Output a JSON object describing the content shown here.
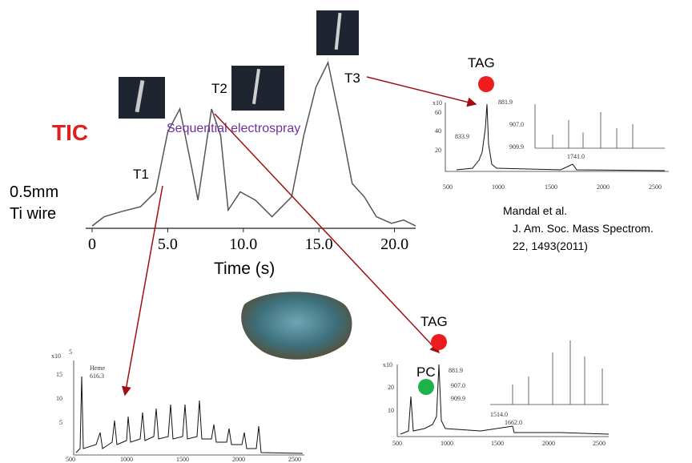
{
  "chart_data": {
    "type": "line",
    "title": "TIC",
    "xlabel": "Time (s)",
    "x": [
      0,
      0.8,
      1.9,
      3.2,
      4.2,
      5.0,
      5.8,
      6.6,
      7.0,
      7.9,
      8.5,
      9.0,
      9.8,
      10.8,
      11.9,
      13.2,
      14.0,
      14.8,
      15.6,
      16.4,
      17.2,
      18.0,
      18.8,
      19.8,
      20.6,
      21.4
    ],
    "values": [
      1.4,
      7,
      10,
      13,
      22,
      58,
      72,
      36,
      17,
      72,
      56,
      11,
      22,
      17,
      7,
      19,
      56,
      85,
      100,
      65,
      27,
      19,
      7,
      3,
      5,
      1.4
    ],
    "color": "#555555",
    "xlim": [
      0,
      21.4
    ],
    "xticks": [
      0,
      {
        "value": 5,
        "label": "5.0"
      },
      {
        "value": 10,
        "label": "10.0"
      },
      {
        "value": 15,
        "label": "15.0"
      },
      {
        "value": 20,
        "label": "20.0"
      }
    ],
    "ylim": [
      0,
      100
    ],
    "points": [
      "T1",
      "T2",
      "T3"
    ]
  },
  "labels": {
    "wire": "0.5mm",
    "wire2": "Ti  wire",
    "sequential": "Sequential electrospray",
    "citation": [
      "Mandal et al.",
      "J. Am. Soc. Mass Spectrom.",
      "22, 1493(2011)"
    ]
  },
  "insets": {
    "top": {
      "tag": "TAG",
      "scale": "x10",
      "yticks": [
        "60",
        "40",
        "20"
      ],
      "xticks": [
        "500",
        "1000",
        "1500",
        "2000",
        "2500"
      ],
      "peaks": [
        "881.9",
        "907.0",
        "833.9",
        "909.9",
        "1741.0"
      ]
    },
    "left": {
      "scale": "x10",
      "exp": "5",
      "yticks": [
        "15",
        "10",
        "5"
      ],
      "xticks": [
        "500",
        "1000",
        "1500",
        "2000",
        "2500"
      ],
      "peaks": [
        "Heme",
        "616.3"
      ]
    },
    "right": {
      "tag": "TAG",
      "pc": "PC",
      "scale": "x10",
      "yticks": [
        "20",
        "10"
      ],
      "xticks": [
        "500",
        "1000",
        "1500",
        "2000",
        "2500"
      ],
      "peaks": [
        "881.9",
        "907.0",
        "909.9",
        "1514.0",
        "1662.0"
      ]
    }
  }
}
